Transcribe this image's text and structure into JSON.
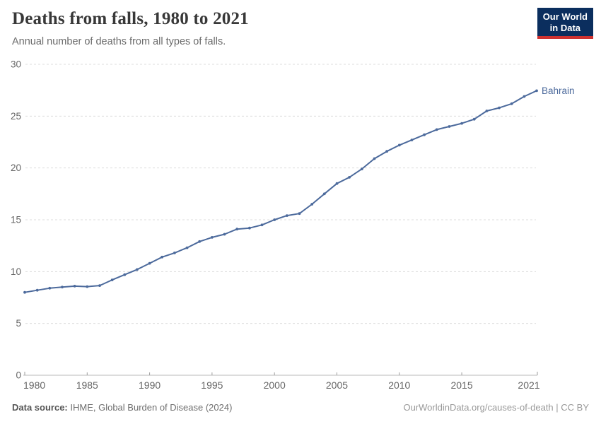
{
  "header": {
    "title": "Deaths from falls, 1980 to 2021",
    "subtitle": "Annual number of deaths from all types of falls.",
    "logo": {
      "line1": "Our World",
      "line2": "in Data",
      "bg_color": "#0b2e5e",
      "accent_color": "#cf3230"
    }
  },
  "chart_data": {
    "type": "line",
    "title": "Deaths from falls, 1980 to 2021",
    "subtitle": "Annual number of deaths from all types of falls.",
    "xlabel": "",
    "ylabel": "",
    "ylim": [
      0,
      30
    ],
    "yticks": [
      0,
      5,
      10,
      15,
      20,
      25,
      30
    ],
    "xticks": [
      1980,
      1985,
      1990,
      1995,
      2000,
      2005,
      2010,
      2015,
      2021
    ],
    "grid": "horizontal-dashed",
    "legend_position": "end-of-line",
    "colors": {
      "line": "#4C6A9C",
      "grid": "#dcdcdc",
      "axis": "#b8b8b8",
      "tick": "#9e9e9e",
      "tick_label": "#666666"
    },
    "series": [
      {
        "name": "Bahrain",
        "color": "#4C6A9C",
        "x": [
          1980,
          1981,
          1982,
          1983,
          1984,
          1985,
          1986,
          1987,
          1988,
          1989,
          1990,
          1991,
          1992,
          1993,
          1994,
          1995,
          1996,
          1997,
          1998,
          1999,
          2000,
          2001,
          2002,
          2003,
          2004,
          2005,
          2006,
          2007,
          2008,
          2009,
          2010,
          2011,
          2012,
          2013,
          2014,
          2015,
          2016,
          2017,
          2018,
          2019,
          2020,
          2021
        ],
        "values": [
          8.0,
          8.2,
          8.4,
          8.5,
          8.6,
          8.55,
          8.65,
          9.2,
          9.7,
          10.2,
          10.8,
          11.4,
          11.8,
          12.3,
          12.9,
          13.3,
          13.6,
          14.1,
          14.2,
          14.5,
          15.0,
          15.4,
          15.6,
          16.5,
          17.5,
          18.5,
          19.1,
          19.9,
          20.9,
          21.6,
          22.2,
          22.7,
          23.2,
          23.7,
          24.0,
          24.3,
          24.7,
          25.5,
          25.8,
          26.2,
          26.9,
          27.45
        ]
      }
    ]
  },
  "footer": {
    "source_label": "Data source:",
    "source_text": "IHME, Global Burden of Disease (2024)",
    "credit": "OurWorldinData.org/causes-of-death | CC BY"
  }
}
